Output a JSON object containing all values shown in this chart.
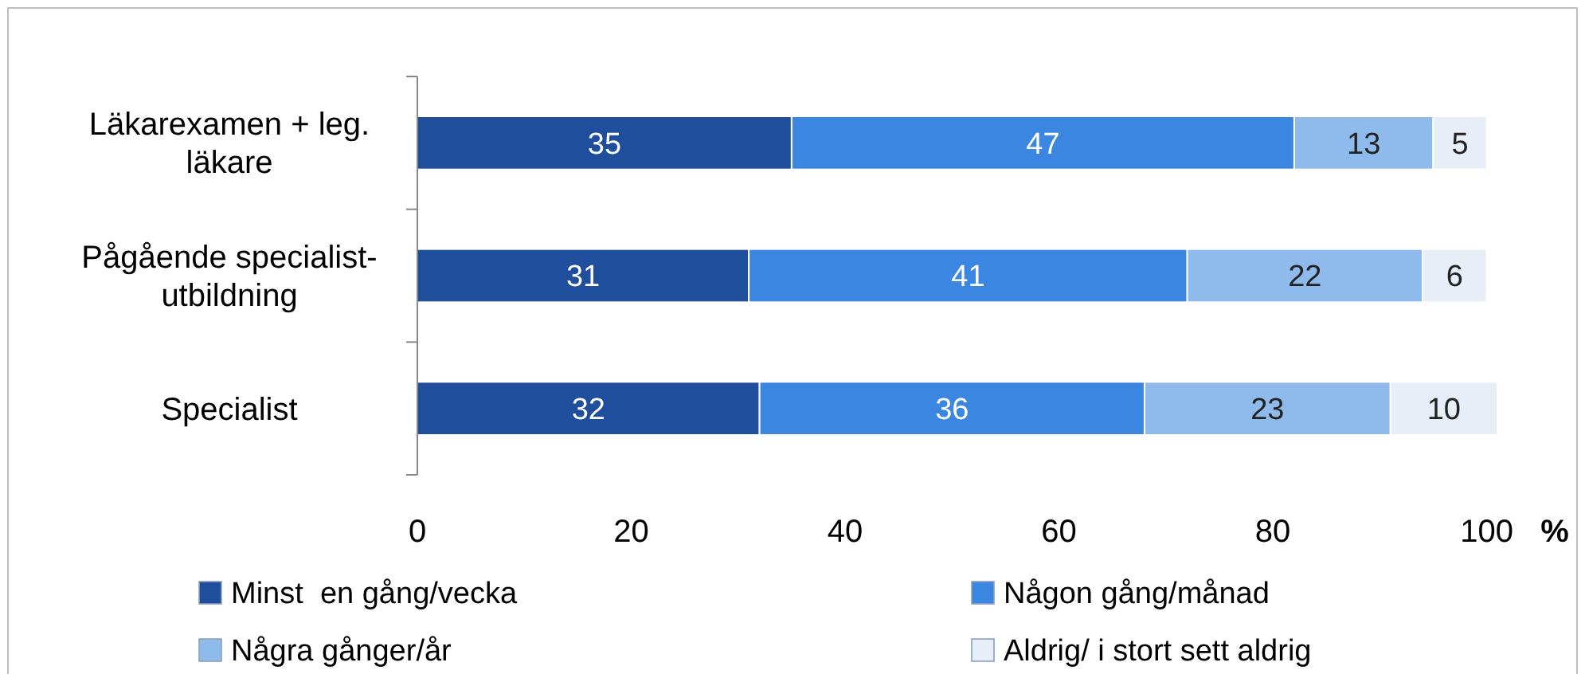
{
  "chart_data": {
    "type": "bar",
    "orientation": "horizontal",
    "stacked": true,
    "xlabel": "%",
    "categories": [
      "Läkarexamen + leg. läkare",
      "Pågående specialist-utbildning",
      "Specialist"
    ],
    "series": [
      {
        "name": "Minst  en gång/vecka",
        "color": "#1f4e9c",
        "values": [
          35,
          31,
          32
        ]
      },
      {
        "name": "Någon gång/månad",
        "color": "#3a86e0",
        "values": [
          47,
          41,
          36
        ]
      },
      {
        "name": "Några gånger/år",
        "color": "#8fbaec",
        "values": [
          13,
          22,
          23
        ]
      },
      {
        "name": "Aldrig/ i stort sett aldrig",
        "color": "#e8eef7",
        "values": [
          5,
          6,
          10
        ]
      }
    ],
    "xlim": [
      0,
      101
    ],
    "xticks": [
      0,
      20,
      40,
      60,
      80,
      100
    ],
    "data_labels": true,
    "legend": "bottom",
    "grid": false
  }
}
